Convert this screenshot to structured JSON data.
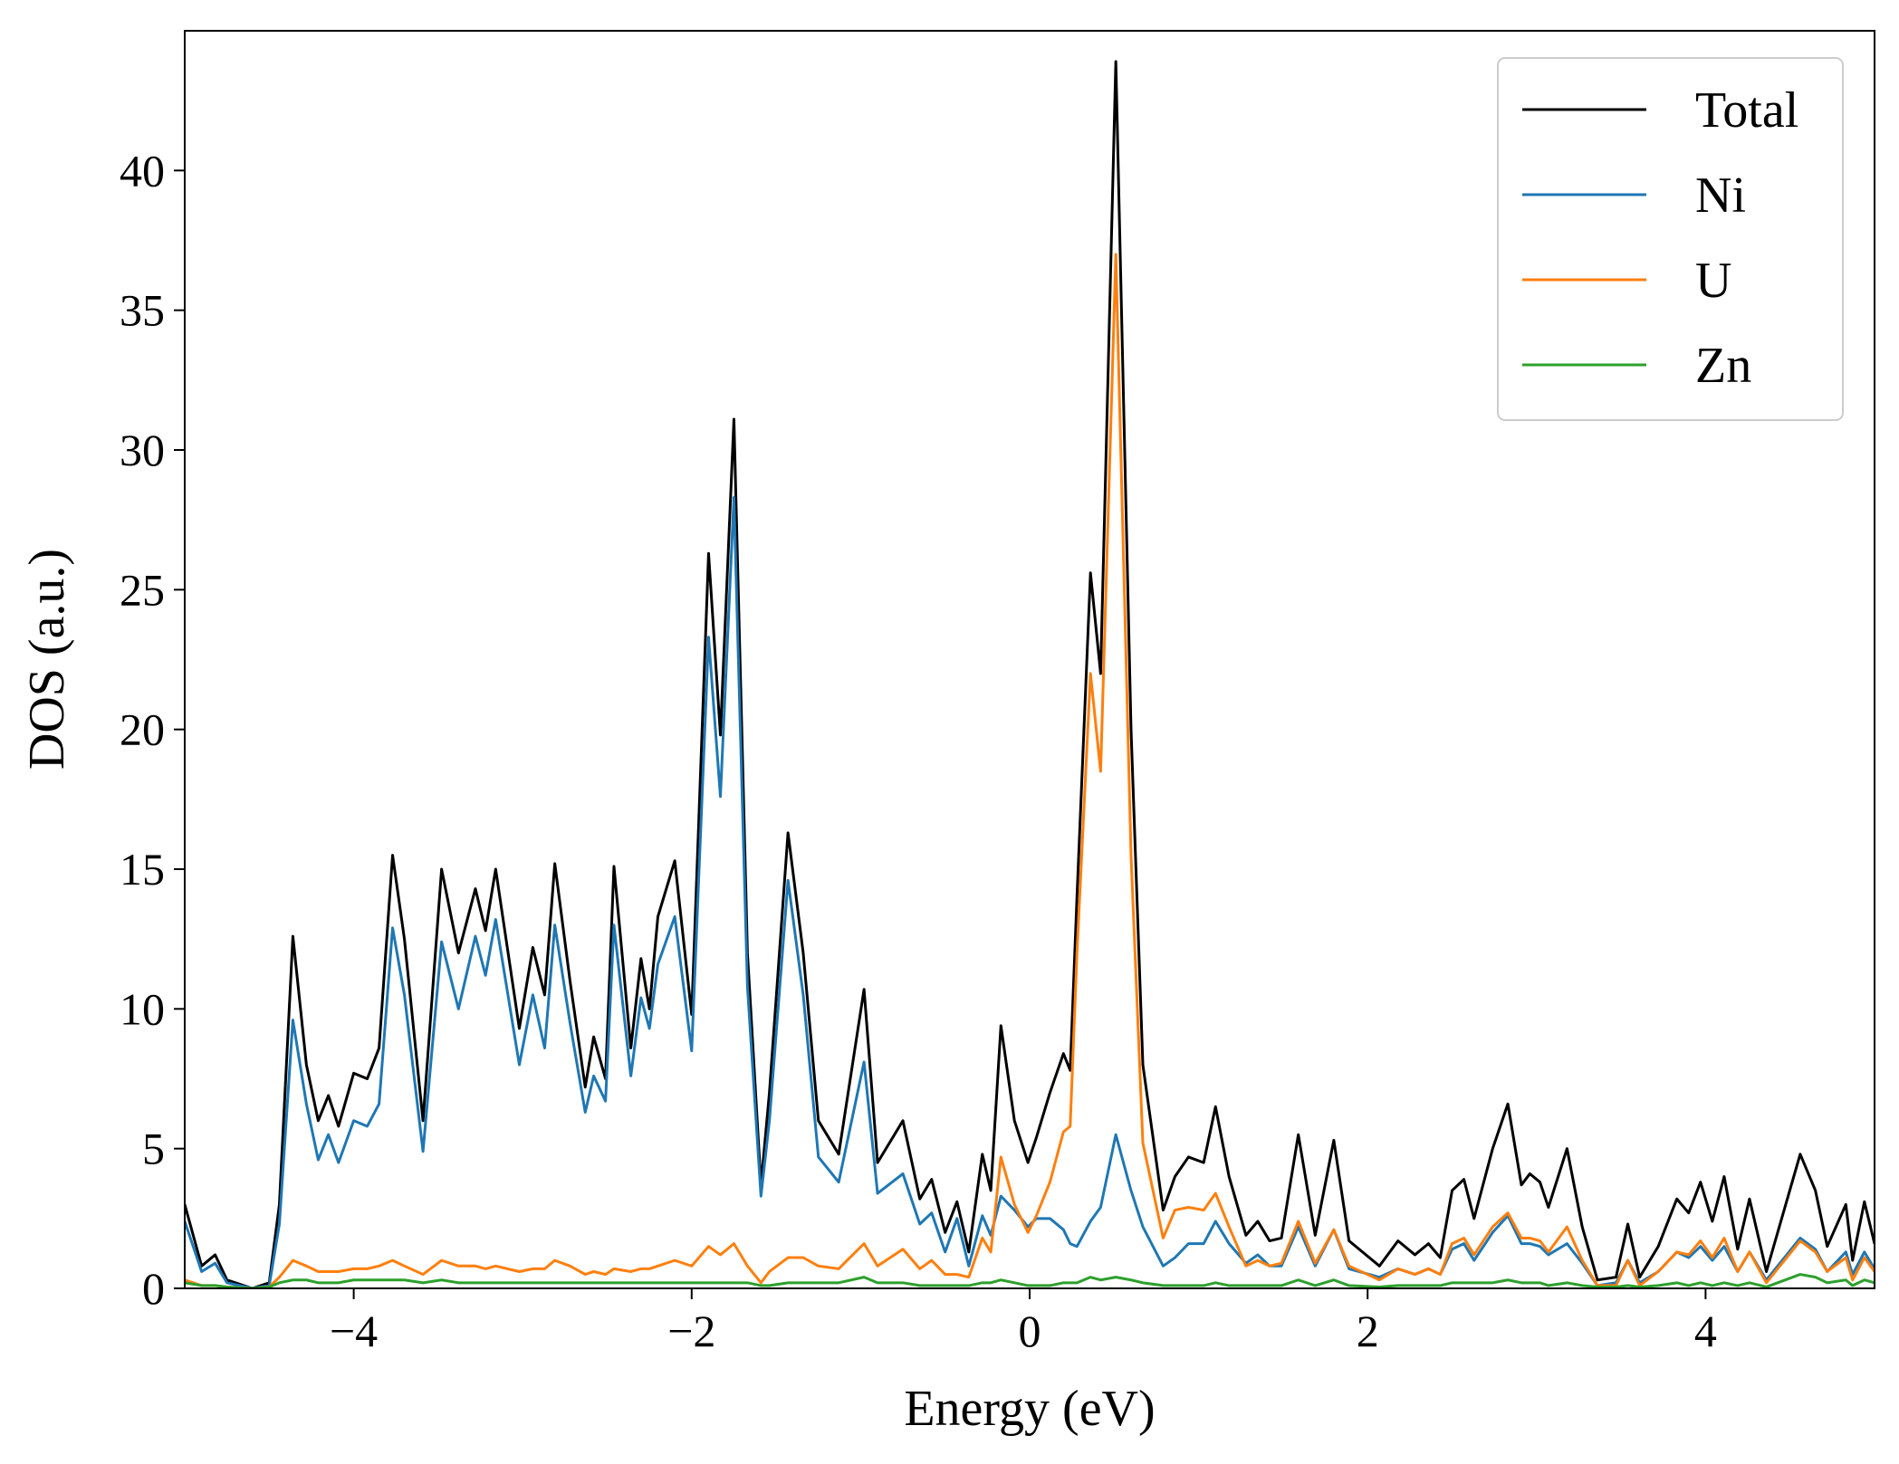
{
  "chart_data": {
    "type": "line",
    "xlabel": "Energy (eV)",
    "ylabel": "DOS (a.u.)",
    "xlim": [
      -5,
      5
    ],
    "ylim": [
      0,
      45
    ],
    "xticks": [
      {
        "value": -4,
        "label": "−4"
      },
      {
        "value": -2,
        "label": "−2"
      },
      0,
      2,
      4
    ],
    "yticks": [
      0,
      5,
      10,
      15,
      20,
      25,
      30,
      35,
      40
    ],
    "legend": "upper right",
    "grid": false,
    "x": [
      -5.0,
      -4.9,
      -4.82,
      -4.75,
      -4.6,
      -4.5,
      -4.44,
      -4.36,
      -4.28,
      -4.21,
      -4.15,
      -4.09,
      -4.0,
      -3.92,
      -3.85,
      -3.77,
      -3.7,
      -3.59,
      -3.48,
      -3.38,
      -3.28,
      -3.22,
      -3.16,
      -3.02,
      -2.94,
      -2.87,
      -2.81,
      -2.72,
      -2.63,
      -2.58,
      -2.51,
      -2.46,
      -2.36,
      -2.3,
      -2.25,
      -2.2,
      -2.1,
      -2.0,
      -1.9,
      -1.83,
      -1.75,
      -1.67,
      -1.59,
      -1.54,
      -1.43,
      -1.34,
      -1.25,
      -1.13,
      -0.98,
      -0.9,
      -0.75,
      -0.65,
      -0.58,
      -0.5,
      -0.43,
      -0.36,
      -0.28,
      -0.23,
      -0.17,
      -0.09,
      -0.01,
      0.04,
      0.12,
      0.2,
      0.24,
      0.28,
      0.36,
      0.42,
      0.51,
      0.6,
      0.67,
      0.79,
      0.86,
      0.94,
      1.03,
      1.1,
      1.18,
      1.28,
      1.35,
      1.42,
      1.49,
      1.59,
      1.69,
      1.8,
      1.89,
      2.07,
      2.18,
      2.28,
      2.36,
      2.43,
      2.5,
      2.57,
      2.63,
      2.74,
      2.83,
      2.91,
      2.96,
      3.02,
      3.07,
      3.18,
      3.27,
      3.36,
      3.47,
      3.54,
      3.61,
      3.72,
      3.83,
      3.9,
      3.97,
      4.04,
      4.11,
      4.19,
      4.26,
      4.36,
      4.56,
      4.65,
      4.72,
      4.83,
      4.87,
      4.94,
      5.0
    ],
    "series": [
      {
        "name": "Total",
        "color": "#000000",
        "values": [
          3.0,
          0.8,
          1.2,
          0.3,
          0,
          0.2,
          3,
          12.6,
          8,
          6,
          6.9,
          5.8,
          7.7,
          7.5,
          8.6,
          15.5,
          12.5,
          6,
          15,
          12,
          14.3,
          12.8,
          15,
          9.3,
          12.2,
          10.5,
          15.2,
          11,
          7.2,
          9,
          7.5,
          15.1,
          8.6,
          11.8,
          10,
          13.3,
          15.3,
          9.8,
          26.3,
          19.8,
          31.1,
          12,
          3.7,
          7,
          16.3,
          12,
          6,
          4.8,
          10.7,
          4.5,
          6,
          3.2,
          3.9,
          2,
          3.1,
          1.3,
          4.8,
          3.5,
          9.4,
          6,
          4.5,
          5.4,
          7,
          8.4,
          7.8,
          14,
          25.6,
          22,
          43.9,
          20,
          8,
          2.8,
          4,
          4.7,
          4.5,
          6.5,
          4,
          1.9,
          2.4,
          1.7,
          1.8,
          5.5,
          1.9,
          5.3,
          1.7,
          0.8,
          1.7,
          1.2,
          1.6,
          1.1,
          3.5,
          3.9,
          2.5,
          5,
          6.6,
          3.7,
          4.1,
          3.8,
          2.9,
          5,
          2.2,
          0.3,
          0.4,
          2.3,
          0.4,
          1.5,
          3.2,
          2.7,
          3.8,
          2.4,
          4,
          1.4,
          3.2,
          0.6,
          4.8,
          3.5,
          1.5,
          3.0,
          1.0,
          3.1,
          1.6
        ]
      },
      {
        "name": "Ni",
        "color": "#1f77b4",
        "values": [
          2.4,
          0.6,
          0.9,
          0.2,
          0,
          0.1,
          2.3,
          9.6,
          6.6,
          4.6,
          5.5,
          4.5,
          6.0,
          5.8,
          6.6,
          12.9,
          10.5,
          4.9,
          12.4,
          10,
          12.6,
          11.2,
          13.2,
          8,
          10.5,
          8.6,
          13,
          9.5,
          6.3,
          7.6,
          6.7,
          13,
          7.6,
          10.4,
          9.3,
          11.6,
          13.3,
          8.5,
          23.3,
          17.6,
          28.3,
          10.8,
          3.3,
          6,
          14.6,
          10.5,
          4.7,
          3.8,
          8.1,
          3.4,
          4.1,
          2.3,
          2.7,
          1.3,
          2.5,
          0.8,
          2.6,
          1.9,
          3.3,
          2.8,
          2.2,
          2.5,
          2.5,
          2.1,
          1.6,
          1.5,
          2.4,
          2.9,
          5.5,
          3.5,
          2.2,
          0.8,
          1.1,
          1.6,
          1.6,
          2.4,
          1.6,
          0.9,
          1.2,
          0.8,
          0.8,
          2.2,
          0.8,
          2.1,
          0.7,
          0.4,
          0.7,
          0.5,
          0.7,
          0.5,
          1.4,
          1.6,
          1.0,
          2.0,
          2.6,
          1.6,
          1.6,
          1.5,
          1.2,
          1.6,
          0.9,
          0.1,
          0.2,
          1.0,
          0.2,
          0.6,
          1.3,
          1.1,
          1.5,
          1.0,
          1.5,
          0.6,
          1.3,
          0.3,
          1.8,
          1.4,
          0.6,
          1.3,
          0.5,
          1.3,
          0.7
        ]
      },
      {
        "name": "U",
        "color": "#ff7f0e",
        "values": [
          0.3,
          0.1,
          0.1,
          0.05,
          0,
          0.05,
          0.4,
          1.0,
          0.8,
          0.6,
          0.6,
          0.6,
          0.7,
          0.7,
          0.8,
          1.0,
          0.8,
          0.5,
          1.0,
          0.8,
          0.8,
          0.7,
          0.8,
          0.6,
          0.7,
          0.7,
          1.0,
          0.8,
          0.5,
          0.6,
          0.5,
          0.7,
          0.6,
          0.7,
          0.7,
          0.8,
          1.0,
          0.8,
          1.5,
          1.2,
          1.6,
          0.8,
          0.2,
          0.6,
          1.1,
          1.1,
          0.8,
          0.7,
          1.6,
          0.8,
          1.4,
          0.7,
          1.0,
          0.5,
          0.5,
          0.4,
          1.8,
          1.3,
          4.7,
          3.0,
          2.0,
          2.6,
          3.8,
          5.6,
          5.8,
          12,
          22,
          18.5,
          37,
          15.5,
          5.2,
          1.8,
          2.8,
          2.9,
          2.8,
          3.4,
          2.2,
          0.8,
          1.0,
          0.8,
          0.9,
          2.4,
          0.9,
          2.1,
          0.8,
          0.3,
          0.7,
          0.5,
          0.7,
          0.5,
          1.6,
          1.8,
          1.2,
          2.2,
          2.7,
          1.8,
          1.8,
          1.7,
          1.3,
          2.2,
          1.0,
          0.1,
          0.1,
          1.0,
          0.1,
          0.6,
          1.3,
          1.2,
          1.7,
          1.1,
          1.8,
          0.6,
          1.3,
          0.2,
          1.7,
          1.3,
          0.6,
          1.1,
          0.3,
          1.1,
          0.6
        ]
      },
      {
        "name": "Zn",
        "color": "#2ca02c",
        "values": [
          0.2,
          0.1,
          0.1,
          0.05,
          0,
          0.05,
          0.2,
          0.3,
          0.3,
          0.2,
          0.2,
          0.2,
          0.3,
          0.3,
          0.3,
          0.3,
          0.3,
          0.2,
          0.3,
          0.2,
          0.2,
          0.2,
          0.2,
          0.2,
          0.2,
          0.2,
          0.2,
          0.2,
          0.2,
          0.2,
          0.2,
          0.2,
          0.2,
          0.2,
          0.2,
          0.2,
          0.2,
          0.2,
          0.2,
          0.2,
          0.2,
          0.2,
          0.1,
          0.1,
          0.2,
          0.2,
          0.2,
          0.2,
          0.4,
          0.2,
          0.2,
          0.1,
          0.1,
          0.1,
          0.1,
          0.1,
          0.2,
          0.2,
          0.3,
          0.2,
          0.1,
          0.1,
          0.1,
          0.2,
          0.2,
          0.2,
          0.4,
          0.3,
          0.4,
          0.3,
          0.2,
          0.1,
          0.1,
          0.1,
          0.1,
          0.2,
          0.1,
          0.1,
          0.1,
          0.1,
          0.1,
          0.3,
          0.1,
          0.3,
          0.1,
          0.05,
          0.1,
          0.1,
          0.1,
          0.1,
          0.2,
          0.2,
          0.2,
          0.2,
          0.3,
          0.2,
          0.2,
          0.2,
          0.1,
          0.2,
          0.1,
          0.05,
          0.05,
          0.1,
          0.05,
          0.1,
          0.2,
          0.1,
          0.2,
          0.1,
          0.2,
          0.1,
          0.2,
          0.05,
          0.5,
          0.4,
          0.2,
          0.3,
          0.1,
          0.3,
          0.2
        ]
      }
    ]
  }
}
